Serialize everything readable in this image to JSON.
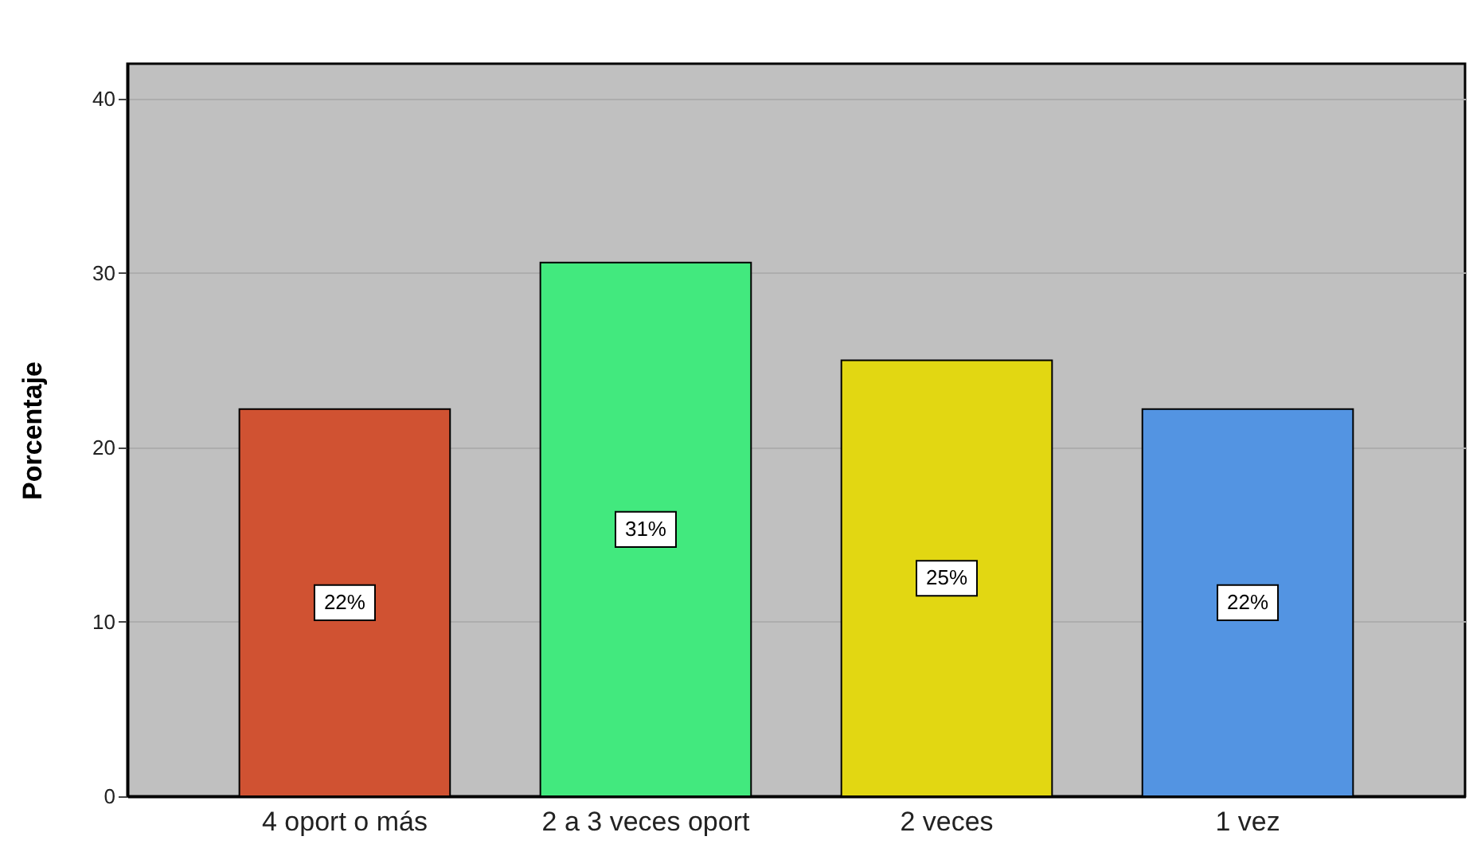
{
  "chart_data": {
    "type": "bar",
    "ylabel": "Porcentaje",
    "categories": [
      "4 oport o más",
      "2 a 3 veces oport",
      "2 veces",
      "1 vez"
    ],
    "values": [
      22.2,
      30.6,
      25.0,
      22.2
    ],
    "colors": [
      "#d05232",
      "#42e97e",
      "#e2d712",
      "#5394e2"
    ],
    "value_labels": [
      "22%",
      "31%",
      "25%",
      "22%"
    ],
    "ylim": [
      0,
      42
    ],
    "yticks": [
      0,
      10,
      20,
      30,
      40
    ],
    "grid": "y"
  }
}
